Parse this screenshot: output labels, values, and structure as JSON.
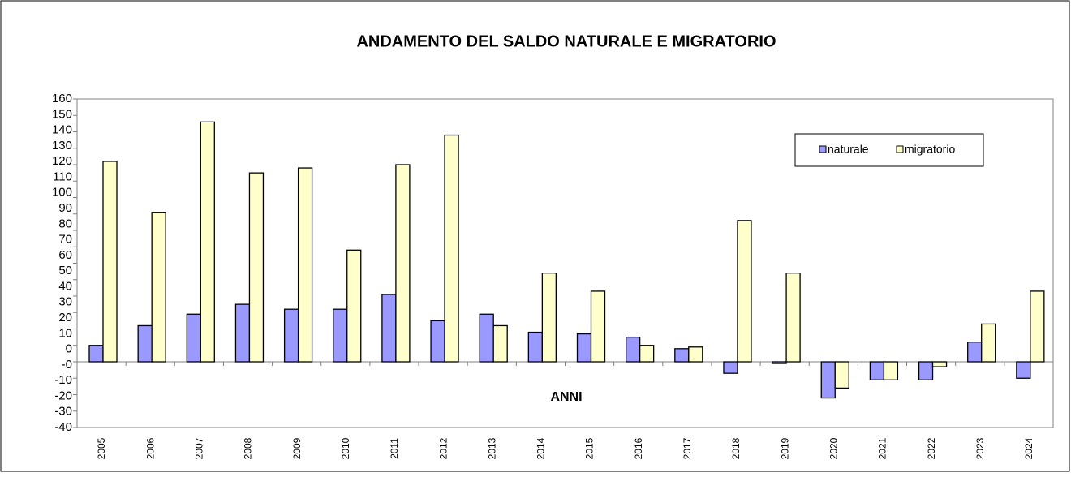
{
  "chart_data": {
    "type": "bar",
    "title": "ANDAMENTO  DEL SALDO  NATURALE  E MIGRATORIO",
    "x_label": "ANNI",
    "categories": [
      "2005",
      "2006",
      "2007",
      "2008",
      "2009",
      "2010",
      "2011",
      "2012",
      "2013",
      "2014",
      "2015",
      "2016",
      "2017",
      "2018",
      "2019",
      "2020",
      "2021",
      "2022",
      "2023",
      "2024"
    ],
    "series": [
      {
        "name": "naturale",
        "color": "#9999ff",
        "values": [
          10,
          22,
          29,
          35,
          32,
          32,
          41,
          25,
          29,
          18,
          17,
          15,
          8,
          -7,
          -1,
          -22,
          -11,
          -11,
          12,
          -10
        ]
      },
      {
        "name": "migratorio",
        "color": "#ffffcc",
        "values": [
          122,
          91,
          146,
          115,
          118,
          68,
          120,
          138,
          22,
          54,
          43,
          10,
          9,
          86,
          54,
          -16,
          -11,
          -3,
          23,
          43
        ]
      }
    ],
    "ylim": [
      -40,
      160
    ],
    "yticks": [
      160,
      150,
      140,
      130,
      120,
      110,
      100,
      90,
      80,
      70,
      60,
      50,
      40,
      30,
      20,
      10,
      0,
      {
        "value": 0,
        "label": "-0"
      },
      -10,
      -20,
      -30,
      -40
    ],
    "grid": false,
    "legend": "upper right"
  }
}
